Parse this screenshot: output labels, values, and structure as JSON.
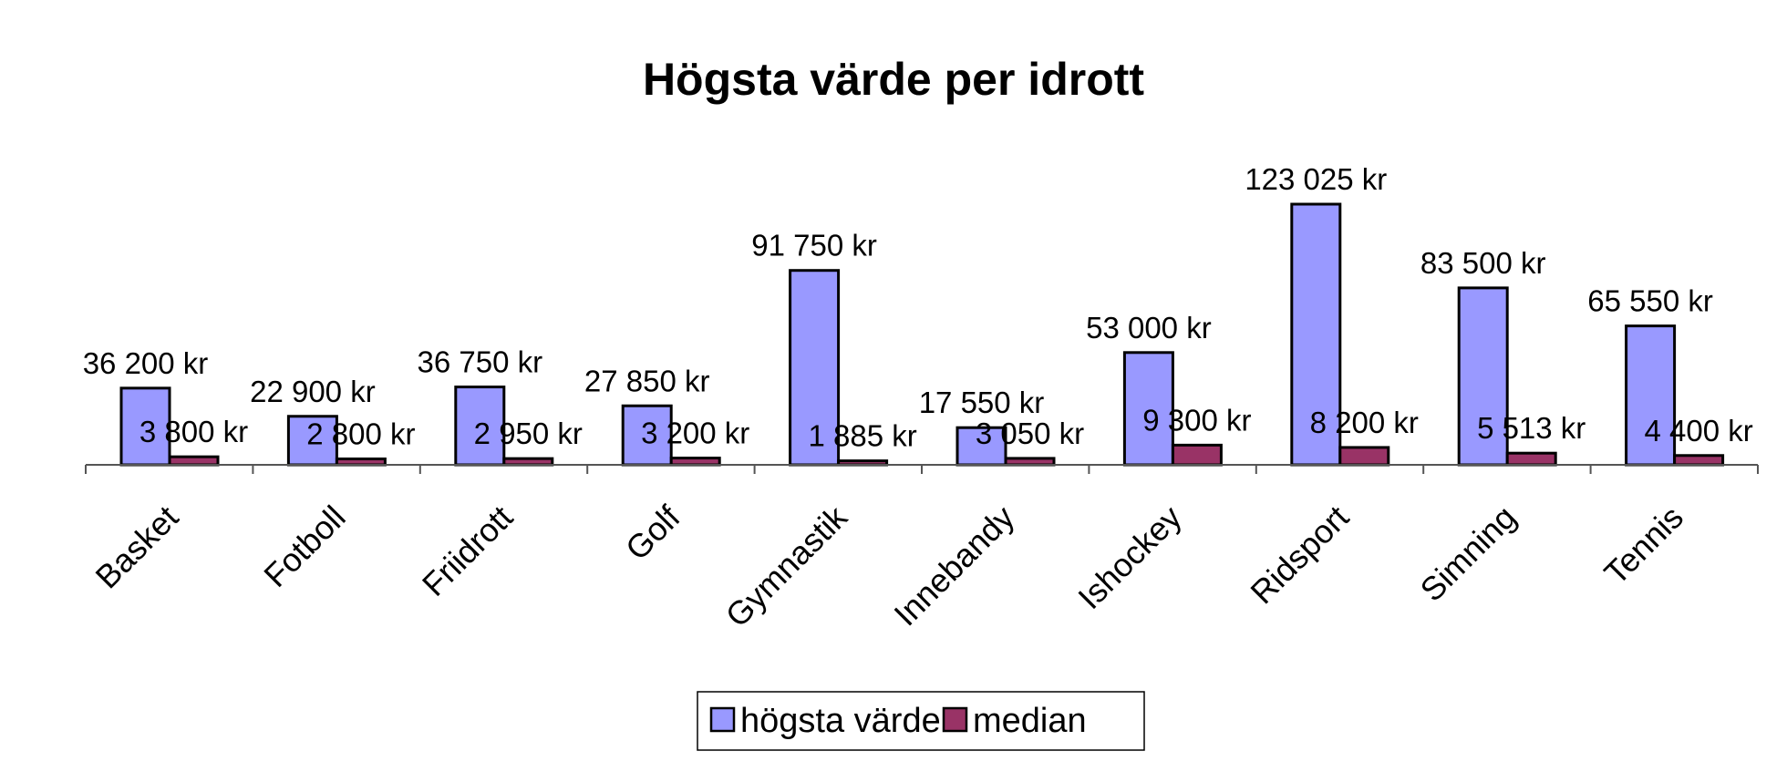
{
  "chart_data": {
    "type": "bar",
    "title": "Högsta värde per idrott",
    "xlabel": "",
    "ylabel": "",
    "categories": [
      "Basket",
      "Fotboll",
      "Friidrott",
      "Golf",
      "Gymnastik",
      "Innebandy",
      "Ishockey",
      "Ridsport",
      "Simning",
      "Tennis"
    ],
    "series": [
      {
        "name": "högsta värde",
        "color": "#9999ff",
        "values": [
          36200,
          22900,
          36750,
          27850,
          91750,
          17550,
          53000,
          123025,
          83500,
          65550
        ],
        "labels": [
          "36 200 kr",
          "22 900 kr",
          "36 750 kr",
          "27 850 kr",
          "91 750 kr",
          "17 550 kr",
          "53 000 kr",
          "123 025 kr",
          "83 500 kr",
          "65 550 kr"
        ]
      },
      {
        "name": "median",
        "color": "#993366",
        "values": [
          3800,
          2800,
          2950,
          3200,
          1885,
          3050,
          9300,
          8200,
          5513,
          4400
        ],
        "labels": [
          "3 800 kr",
          "2 800 kr",
          "2 950 kr",
          "3 200 kr",
          "1 885 kr",
          "3 050 kr",
          "9 300 kr",
          "8 200 kr",
          "5 513 kr",
          "4 400 kr"
        ]
      }
    ],
    "ylim": [
      0,
      123025
    ],
    "grid": false,
    "legend_position": "bottom"
  }
}
